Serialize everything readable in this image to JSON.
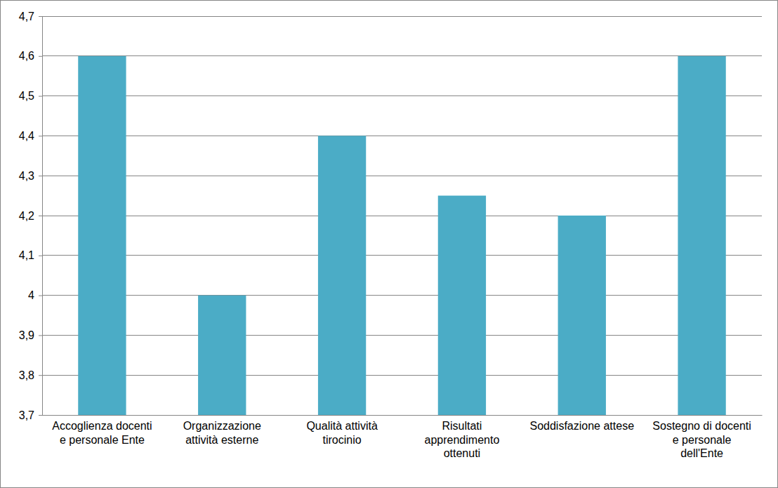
{
  "chart_data": {
    "type": "bar",
    "categories": [
      "Accoglienza docenti e personale Ente",
      "Organizzazione attività esterne",
      "Qualità attività tirocinio",
      "Risultati apprendimento ottenuti",
      "Soddisfazione attese",
      "Sostegno di docenti e personale dell'Ente"
    ],
    "values": [
      4.6,
      4.0,
      4.4,
      4.25,
      4.2,
      4.6
    ],
    "color": "#4bacc6",
    "ylim": [
      3.7,
      4.7
    ],
    "yticks": [
      {
        "value": 3.7,
        "label": "3,7"
      },
      {
        "value": 3.8,
        "label": "3,8"
      },
      {
        "value": 3.9,
        "label": "3,9"
      },
      4,
      {
        "value": 4.1,
        "label": "4,1"
      },
      {
        "value": 4.2,
        "label": "4,2"
      },
      {
        "value": 4.3,
        "label": "4,3"
      },
      {
        "value": 4.4,
        "label": "4,4"
      },
      {
        "value": 4.5,
        "label": "4,5"
      },
      {
        "value": 4.6,
        "label": "4,6"
      },
      {
        "value": 4.7,
        "label": "4,7"
      }
    ],
    "grid": true
  }
}
